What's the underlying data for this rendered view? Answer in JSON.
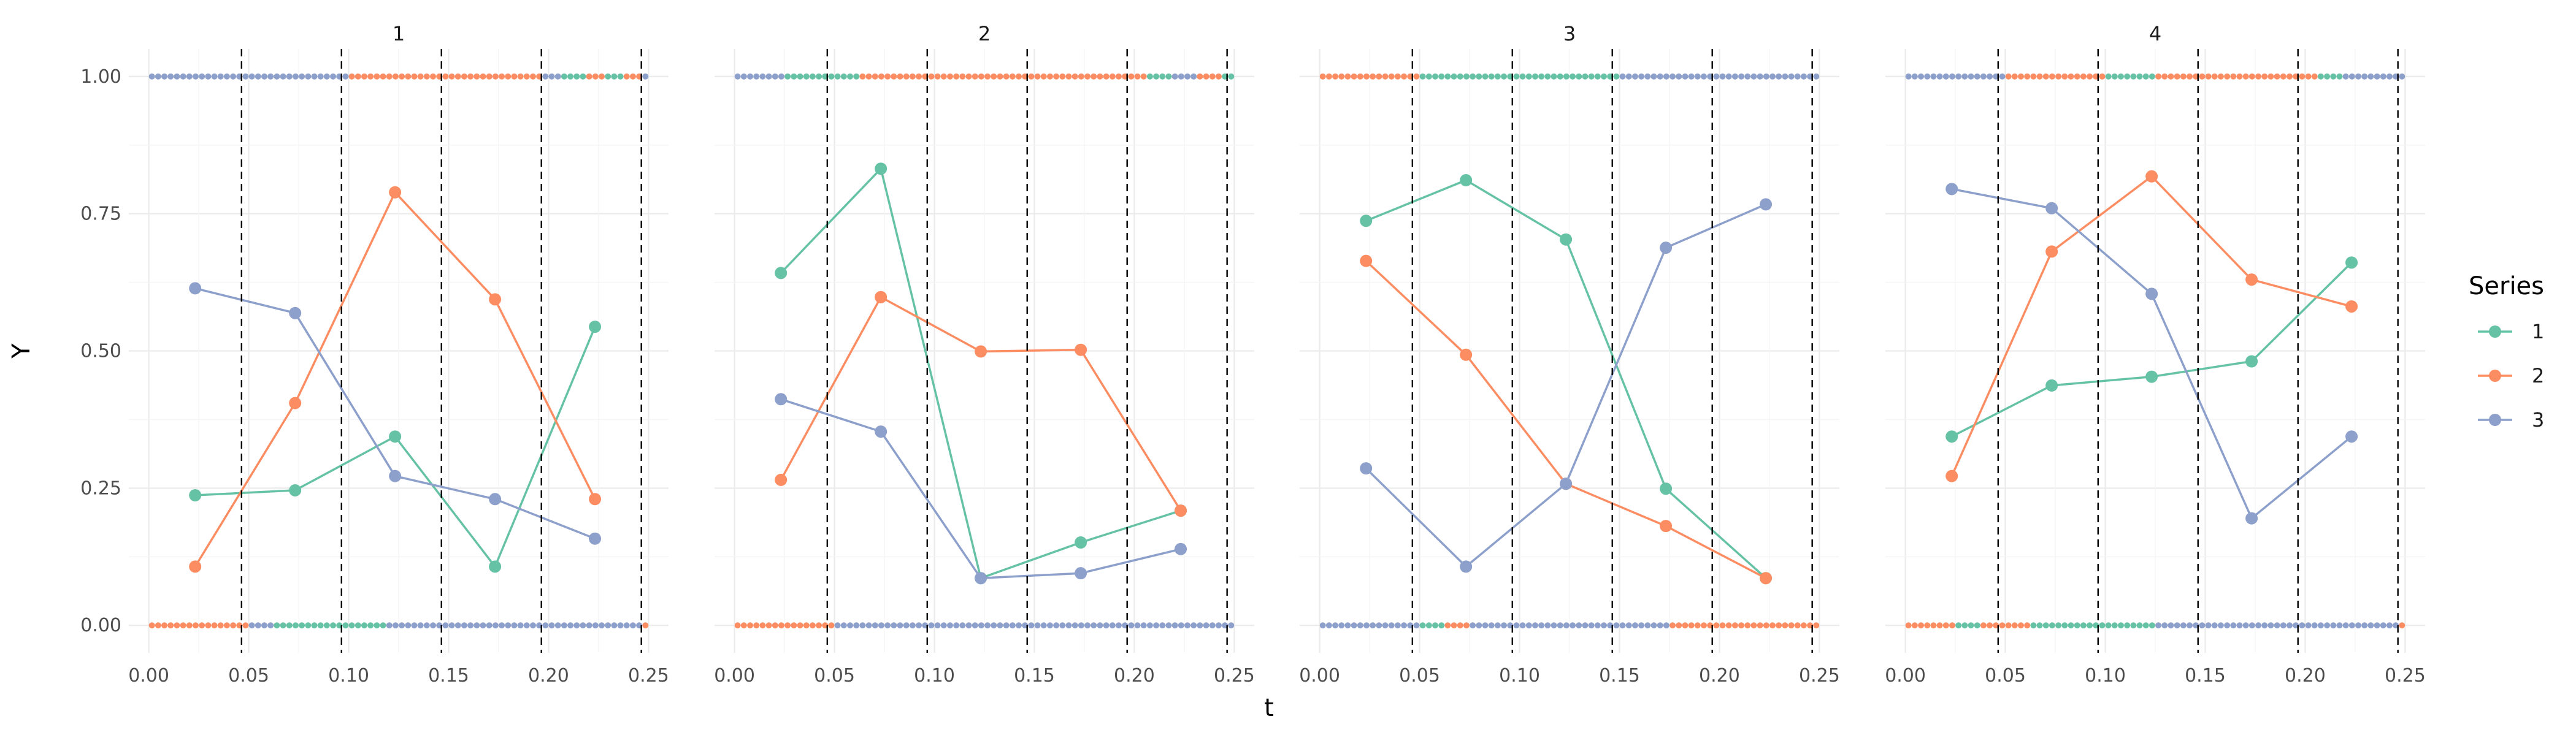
{
  "chart_data": {
    "type": "line",
    "facets": [
      "1",
      "2",
      "3",
      "4"
    ],
    "xlabel": "t",
    "ylabel": "Y",
    "xlim": [
      -0.01,
      0.26
    ],
    "ylim": [
      -0.05,
      1.05
    ],
    "x_ticks": [
      "0.00",
      "0.05",
      "0.10",
      "0.15",
      "0.20",
      "0.25"
    ],
    "y_ticks": [
      "0.00",
      "0.25",
      "0.50",
      "0.75",
      "1.00"
    ],
    "vlines": [
      0.0464,
      0.0964,
      0.1464,
      0.1964,
      0.2464
    ],
    "grid": true,
    "legend": {
      "title": "Series",
      "position": "right",
      "entries": [
        {
          "label": "1",
          "color": "#66c2a5"
        },
        {
          "label": "2",
          "color": "#fc8d62"
        },
        {
          "label": "3",
          "color": "#8da0cb"
        }
      ]
    },
    "x": [
      0.0232,
      0.0732,
      0.1232,
      0.1732,
      0.2232
    ],
    "panels": [
      {
        "facet": "1",
        "series": [
          {
            "name": "1",
            "values": [
              0.237,
              0.246,
              0.344,
              0.107,
              0.544
            ]
          },
          {
            "name": "2",
            "values": [
              0.107,
              0.405,
              0.789,
              0.594,
              0.23
            ]
          },
          {
            "name": "3",
            "values": [
              0.614,
              0.569,
              0.272,
              0.23,
              0.158
            ]
          }
        ]
      },
      {
        "facet": "2",
        "series": [
          {
            "name": "1",
            "values": [
              0.642,
              0.832,
              0.086,
              0.151,
              0.209
            ]
          },
          {
            "name": "2",
            "values": [
              0.265,
              0.598,
              0.499,
              0.502,
              0.209
            ]
          },
          {
            "name": "3",
            "values": [
              0.412,
              0.353,
              0.086,
              0.095,
              0.139
            ]
          }
        ]
      },
      {
        "facet": "3",
        "series": [
          {
            "name": "1",
            "values": [
              0.737,
              0.811,
              0.703,
              0.249,
              0.086
            ]
          },
          {
            "name": "2",
            "values": [
              0.664,
              0.493,
              0.258,
              0.181,
              0.086
            ]
          },
          {
            "name": "3",
            "values": [
              0.286,
              0.107,
              0.258,
              0.688,
              0.767
            ]
          }
        ]
      },
      {
        "facet": "4",
        "series": [
          {
            "name": "1",
            "values": [
              0.344,
              0.437,
              0.453,
              0.481,
              0.661
            ]
          },
          {
            "name": "2",
            "values": [
              0.272,
              0.681,
              0.818,
              0.63,
              0.581
            ]
          },
          {
            "name": "3",
            "values": [
              0.795,
              0.76,
              0.604,
              0.195,
              0.344
            ]
          }
        ]
      }
    ],
    "rug": {
      "description": "Binary observations (Y = 0 or 1) drawn as small points along the top and bottom of each panel",
      "n_per_panel": 80,
      "t_step": 0.003125,
      "panels": [
        {
          "facet": "1",
          "top": [
            3,
            3,
            3,
            3,
            3,
            3,
            3,
            3,
            3,
            3,
            3,
            3,
            3,
            3,
            3,
            3,
            3,
            3,
            3,
            3,
            3,
            3,
            3,
            3,
            3,
            3,
            3,
            3,
            3,
            3,
            3,
            3,
            2,
            2,
            2,
            2,
            2,
            2,
            2,
            2,
            2,
            2,
            2,
            2,
            2,
            2,
            2,
            2,
            2,
            2,
            2,
            2,
            2,
            2,
            2,
            2,
            2,
            2,
            2,
            2,
            2,
            2,
            2,
            3,
            3,
            3,
            1,
            1,
            1,
            1,
            2,
            2,
            2,
            1,
            1,
            1,
            2,
            2,
            2,
            3
          ],
          "bottom": [
            2,
            2,
            2,
            2,
            2,
            2,
            2,
            2,
            2,
            2,
            2,
            2,
            2,
            2,
            2,
            2,
            3,
            3,
            3,
            3,
            1,
            1,
            1,
            1,
            1,
            1,
            1,
            1,
            1,
            1,
            1,
            1,
            1,
            1,
            1,
            1,
            1,
            1,
            3,
            3,
            3,
            3,
            3,
            3,
            3,
            3,
            3,
            3,
            3,
            3,
            3,
            3,
            3,
            3,
            3,
            3,
            3,
            3,
            3,
            3,
            3,
            3,
            3,
            3,
            3,
            3,
            3,
            3,
            3,
            3,
            3,
            3,
            3,
            3,
            3,
            3,
            3,
            3,
            3,
            2
          ]
        },
        {
          "facet": "2",
          "top": [
            3,
            3,
            3,
            3,
            3,
            3,
            3,
            3,
            1,
            1,
            1,
            1,
            1,
            1,
            1,
            1,
            1,
            1,
            1,
            1,
            2,
            2,
            2,
            2,
            2,
            2,
            2,
            2,
            2,
            2,
            2,
            2,
            2,
            2,
            2,
            2,
            2,
            2,
            2,
            2,
            2,
            2,
            2,
            2,
            2,
            2,
            2,
            2,
            2,
            2,
            2,
            2,
            2,
            2,
            2,
            2,
            2,
            2,
            2,
            2,
            2,
            2,
            2,
            2,
            2,
            2,
            1,
            1,
            1,
            1,
            3,
            3,
            3,
            3,
            2,
            2,
            2,
            2,
            1,
            1
          ],
          "bottom": [
            2,
            2,
            2,
            2,
            2,
            2,
            2,
            2,
            2,
            2,
            2,
            2,
            2,
            2,
            2,
            2,
            3,
            3,
            3,
            3,
            3,
            3,
            3,
            3,
            3,
            3,
            3,
            3,
            3,
            3,
            3,
            3,
            3,
            3,
            3,
            3,
            3,
            3,
            3,
            3,
            3,
            3,
            3,
            3,
            3,
            3,
            3,
            3,
            3,
            3,
            3,
            3,
            3,
            3,
            3,
            3,
            3,
            3,
            3,
            3,
            3,
            3,
            3,
            3,
            3,
            3,
            3,
            3,
            3,
            3,
            3,
            3,
            3,
            3,
            3,
            3,
            3,
            3,
            3,
            3
          ]
        },
        {
          "facet": "3",
          "top": [
            2,
            2,
            2,
            2,
            2,
            2,
            2,
            2,
            2,
            2,
            2,
            2,
            2,
            2,
            2,
            2,
            1,
            1,
            1,
            1,
            1,
            1,
            1,
            1,
            1,
            1,
            1,
            1,
            1,
            1,
            1,
            1,
            1,
            1,
            1,
            1,
            1,
            1,
            1,
            1,
            1,
            1,
            1,
            1,
            1,
            1,
            1,
            1,
            3,
            3,
            3,
            3,
            3,
            3,
            3,
            3,
            3,
            3,
            3,
            3,
            3,
            3,
            3,
            3,
            3,
            3,
            3,
            3,
            3,
            3,
            3,
            3,
            3,
            3,
            3,
            3,
            3,
            3,
            3,
            3
          ],
          "bottom": [
            3,
            3,
            3,
            3,
            3,
            3,
            3,
            3,
            3,
            3,
            3,
            3,
            3,
            3,
            3,
            3,
            1,
            1,
            1,
            1,
            2,
            2,
            2,
            2,
            3,
            3,
            3,
            3,
            3,
            3,
            3,
            3,
            3,
            3,
            3,
            3,
            3,
            3,
            3,
            3,
            3,
            3,
            3,
            3,
            3,
            3,
            3,
            3,
            3,
            3,
            3,
            3,
            3,
            3,
            3,
            3,
            2,
            2,
            2,
            2,
            2,
            2,
            2,
            2,
            2,
            2,
            2,
            2,
            2,
            2,
            2,
            2,
            2,
            2,
            2,
            2,
            2,
            2,
            2,
            2
          ]
        },
        {
          "facet": "4",
          "top": [
            3,
            3,
            3,
            3,
            3,
            3,
            3,
            3,
            3,
            3,
            3,
            3,
            3,
            3,
            3,
            3,
            2,
            2,
            2,
            2,
            2,
            2,
            2,
            2,
            2,
            2,
            2,
            2,
            2,
            2,
            2,
            2,
            1,
            1,
            1,
            1,
            1,
            1,
            1,
            1,
            2,
            2,
            2,
            2,
            2,
            2,
            2,
            2,
            2,
            2,
            2,
            2,
            2,
            2,
            2,
            2,
            2,
            2,
            2,
            2,
            2,
            2,
            2,
            2,
            2,
            2,
            1,
            1,
            1,
            1,
            3,
            3,
            3,
            3,
            3,
            3,
            3,
            3,
            3,
            3
          ],
          "bottom": [
            2,
            2,
            2,
            2,
            2,
            2,
            2,
            2,
            1,
            1,
            1,
            1,
            2,
            2,
            2,
            2,
            2,
            2,
            2,
            2,
            1,
            1,
            1,
            1,
            1,
            1,
            1,
            1,
            1,
            1,
            1,
            1,
            1,
            1,
            1,
            1,
            1,
            1,
            1,
            1,
            3,
            3,
            3,
            3,
            3,
            3,
            3,
            3,
            3,
            3,
            3,
            3,
            3,
            3,
            3,
            3,
            3,
            3,
            3,
            3,
            3,
            3,
            3,
            3,
            3,
            3,
            3,
            3,
            3,
            3,
            3,
            3,
            3,
            3,
            3,
            3,
            3,
            3,
            3,
            2
          ]
        }
      ]
    }
  }
}
